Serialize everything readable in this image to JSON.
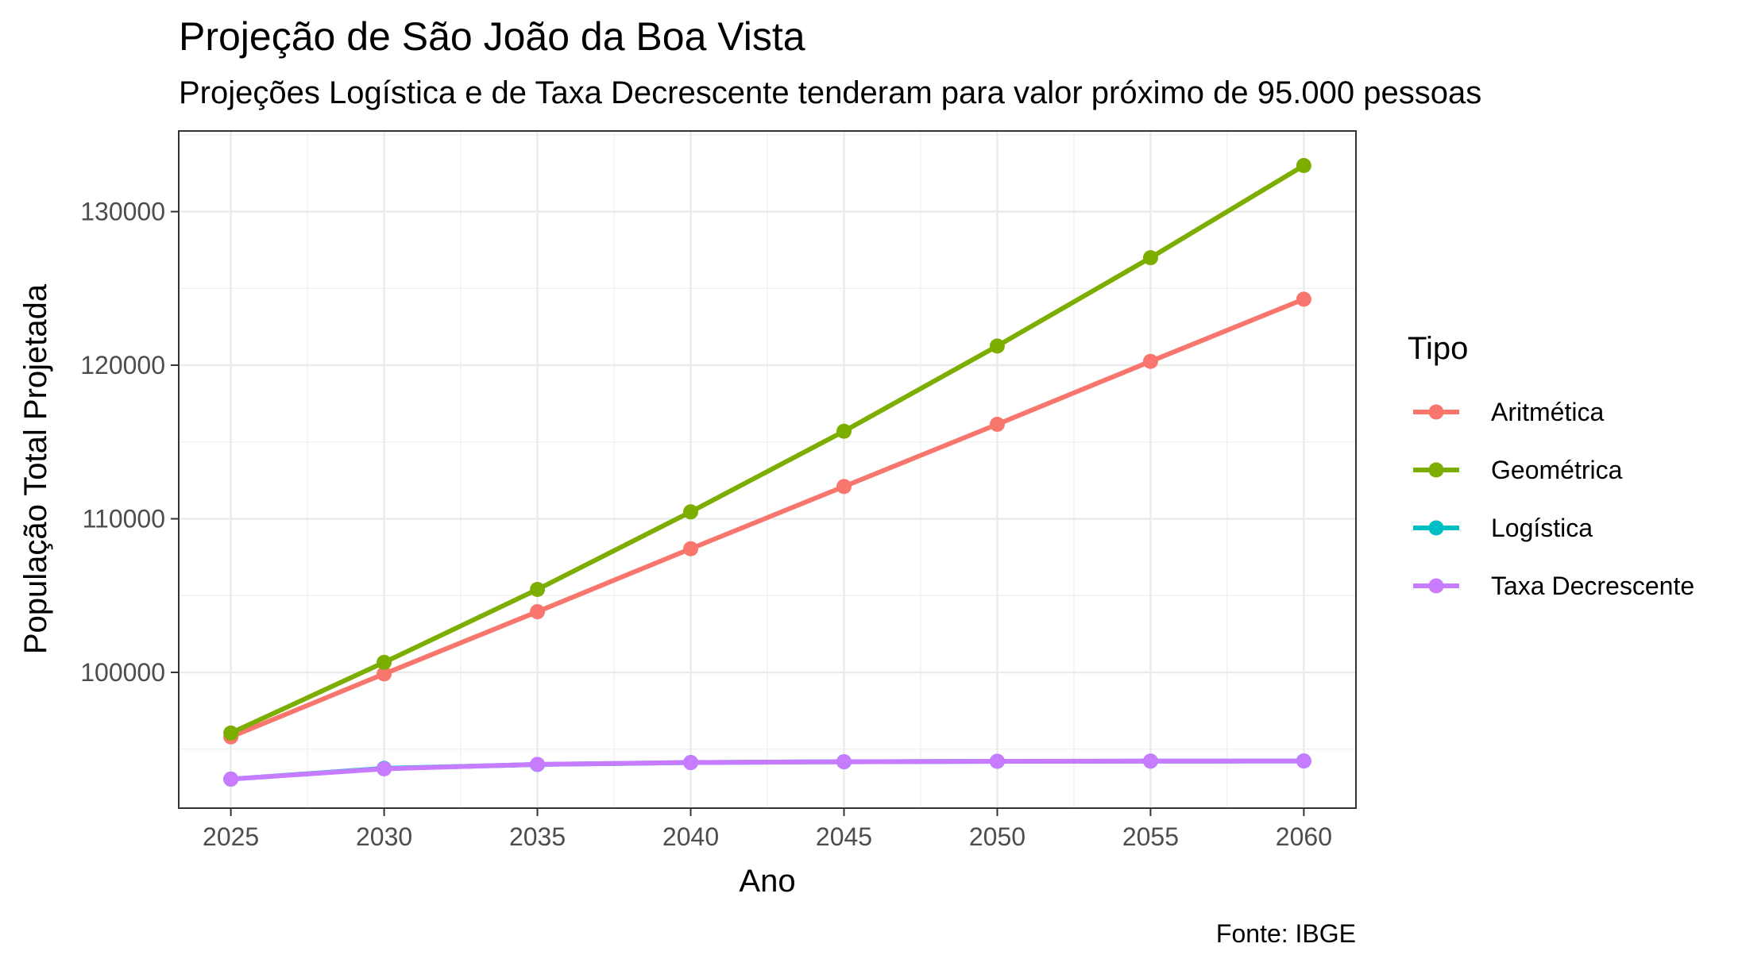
{
  "chart_data": {
    "type": "line",
    "title": "Projeção de São João da Boa Vista",
    "subtitle": "Projeções Logística e de Taxa Decrescente tenderam para valor próximo de 95.000 pessoas",
    "xlabel": "Ano",
    "ylabel": "População Total Projetada",
    "caption": "Fonte: IBGE",
    "x": [
      2025,
      2030,
      2035,
      2040,
      2045,
      2050,
      2055,
      2060
    ],
    "xticks": [
      "2025",
      "2030",
      "2035",
      "2040",
      "2045",
      "2050",
      "2055",
      "2060"
    ],
    "yticks": [
      "100000",
      "110000",
      "120000",
      "130000"
    ],
    "xlim": [
      2023.3,
      2061.7
    ],
    "ylim": [
      91160,
      135250
    ],
    "grid": true,
    "legend": {
      "title": "Tipo",
      "position": "right"
    },
    "series": [
      {
        "name": "Aritmética",
        "color": "#F8766D",
        "values": [
          95800,
          99900,
          103950,
          108050,
          112100,
          116150,
          120250,
          124300
        ]
      },
      {
        "name": "Geométrica",
        "color": "#7CAE00",
        "values": [
          96050,
          100650,
          105400,
          110450,
          115700,
          121250,
          127000,
          133000
        ]
      },
      {
        "name": "Logística",
        "color": "#00BFC4",
        "values": [
          93050,
          93750,
          94000,
          94130,
          94180,
          94210,
          94220,
          94230
        ]
      },
      {
        "name": "Taxa Decrescente",
        "color": "#C77CFF",
        "values": [
          93050,
          93720,
          94010,
          94130,
          94180,
          94210,
          94220,
          94230
        ]
      }
    ]
  }
}
